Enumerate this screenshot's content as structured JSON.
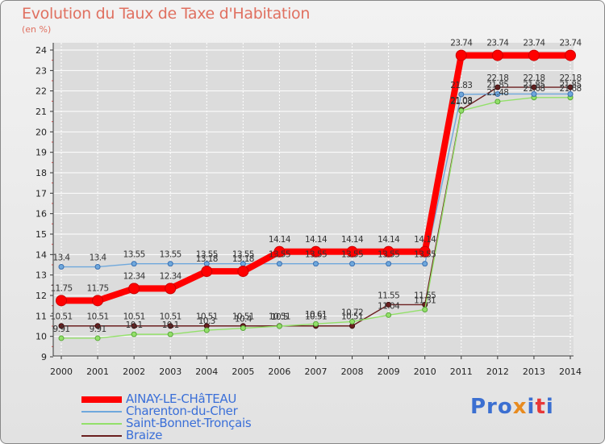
{
  "title": "Evolution du Taux de Taxe d'Habitation",
  "unit": "(en %)",
  "logo": [
    "Pro",
    "x",
    "i",
    "t",
    "i"
  ],
  "colors": {
    "AINAY-LE-CHâTEAU": "#ff0000",
    "Charenton-du-Cher": "#6fa8dc",
    "Saint-Bonnet-Tronçais": "#93e06a",
    "Braize": "#6b1f1f",
    "axis": "#333333",
    "grid": "#ffffff",
    "accent": "#e07060",
    "legend_text": "#3a6fd8"
  },
  "chart_data": {
    "type": "line",
    "title": "Evolution du Taux de Taxe d'Habitation",
    "ylabel": "(en %)",
    "xlabel": "",
    "x": [
      2000,
      2001,
      2002,
      2003,
      2004,
      2005,
      2006,
      2007,
      2008,
      2009,
      2010,
      2011,
      2012,
      2013,
      2014
    ],
    "ylim": [
      9,
      24
    ],
    "yticks": [
      9,
      10,
      11,
      12,
      13,
      14,
      15,
      16,
      17,
      18,
      19,
      20,
      21,
      22,
      23,
      24
    ],
    "grid": true,
    "legend_position": "bottom-left",
    "series": [
      {
        "name": "AINAY-LE-CHâTEAU",
        "values": [
          11.75,
          11.75,
          12.34,
          12.34,
          13.18,
          13.18,
          14.14,
          14.14,
          14.14,
          14.14,
          14.14,
          23.74,
          23.74,
          23.74,
          23.74
        ],
        "labels": [
          "11.75",
          "11.75",
          "12.34",
          "12.34",
          "13.18",
          "13.18",
          "14.14",
          "14.14",
          "14.14",
          "14.14",
          "14.14",
          "23.74",
          "23.74",
          "23.74",
          "23.74"
        ]
      },
      {
        "name": "Charenton-du-Cher",
        "values": [
          13.4,
          13.4,
          13.55,
          13.55,
          13.55,
          13.55,
          13.55,
          13.55,
          13.55,
          13.55,
          13.55,
          21.83,
          21.85,
          21.85,
          21.85
        ],
        "labels": [
          "13.4",
          "13.4",
          "13.55",
          "13.55",
          "13.55",
          "13.55",
          "13.55",
          "13.55",
          "13.55",
          "13.55",
          "13.55",
          "21.83",
          "21.85",
          "21.85",
          "21.85"
        ]
      },
      {
        "name": "Saint-Bonnet-Tronçais",
        "values": [
          9.91,
          9.91,
          10.1,
          10.1,
          10.3,
          10.4,
          10.5,
          10.61,
          10.72,
          11.04,
          11.31,
          21.03,
          21.48,
          21.68,
          21.68
        ],
        "labels": [
          "9.91",
          "9.91",
          "10.1",
          "10.1",
          "10.3",
          "10.4",
          "10.5",
          "10.61",
          "10.72",
          "11.04",
          "11.31",
          "21.03",
          "21.48",
          "21.68",
          "21.68"
        ]
      },
      {
        "name": "Braize",
        "values": [
          10.51,
          10.51,
          10.51,
          10.51,
          10.51,
          10.51,
          10.51,
          10.51,
          10.51,
          11.55,
          11.55,
          21.08,
          22.18,
          22.18,
          22.18
        ],
        "labels": [
          "10.51",
          "10.51",
          "10.51",
          "10.51",
          "10.51",
          "10.51",
          "10.51",
          "10.51",
          "10.51",
          "11.55",
          "11.55",
          "21.08",
          "22.18",
          "22.18",
          "22.18"
        ]
      }
    ]
  }
}
